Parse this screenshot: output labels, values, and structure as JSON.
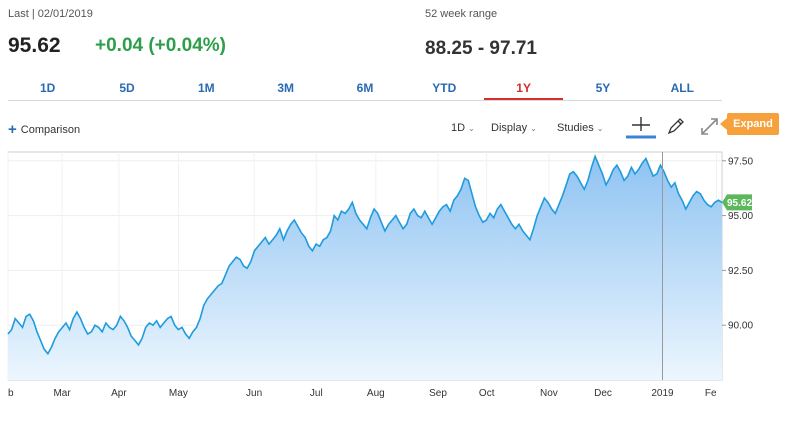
{
  "header": {
    "last_label": "Last | 02/01/2019",
    "last_price": "95.62",
    "change": "+0.04 (+0.04%)",
    "range_label": "52 week range",
    "range_value": "88.25 - 97.71"
  },
  "tabs": [
    {
      "label": "1D",
      "active": false
    },
    {
      "label": "5D",
      "active": false
    },
    {
      "label": "1M",
      "active": false
    },
    {
      "label": "3M",
      "active": false
    },
    {
      "label": "6M",
      "active": false
    },
    {
      "label": "YTD",
      "active": false
    },
    {
      "label": "1Y",
      "active": true
    },
    {
      "label": "5Y",
      "active": false
    },
    {
      "label": "ALL",
      "active": false
    }
  ],
  "toolbar": {
    "comparison_label": "Comparison",
    "interval_label": "1D",
    "display_label": "Display",
    "studies_label": "Studies",
    "expand_label": "Expand",
    "icons": [
      "crosshair-icon",
      "pencil-icon",
      "expand-arrows-icon"
    ]
  },
  "colors": {
    "line": "#1f9bde",
    "fill_top": "#8fc3f2",
    "fill_bottom": "#ecf6fe",
    "positive": "#2e9e4b",
    "active_tab": "#d62d2d",
    "tab": "#2a6ab3",
    "price_badge": "#5cb85c",
    "expand": "#f6a13b"
  },
  "chart_data": {
    "type": "area",
    "x_tick_labels": [
      "b",
      "Mar",
      "Apr",
      "May",
      "Jun",
      "Jul",
      "Aug",
      "Sep",
      "Oct",
      "Nov",
      "Dec",
      "2019",
      "Fe"
    ],
    "x_tick_positions": [
      0,
      20,
      41,
      63,
      91,
      114,
      136,
      159,
      177,
      200,
      220,
      242,
      262
    ],
    "y_ticks": [
      90,
      92.5,
      95,
      97.5
    ],
    "y_tick_labels": [
      "90.00",
      "92.50",
      "95.00",
      "97.50"
    ],
    "ylim": [
      87.5,
      97.9
    ],
    "x_range": [
      0,
      264
    ],
    "last_value_label": "95.62",
    "series": [
      {
        "values": [
          89.6,
          89.8,
          90.3,
          90.1,
          89.9,
          90.4,
          90.5,
          90.2,
          89.7,
          89.3,
          88.9,
          88.7,
          89.0,
          89.4,
          89.7,
          89.9,
          90.1,
          89.8,
          90.3,
          90.6,
          90.3,
          89.9,
          89.6,
          89.7,
          90.0,
          89.9,
          89.7,
          90.1,
          89.9,
          89.8,
          90.0,
          90.4,
          90.2,
          89.9,
          89.5,
          89.3,
          89.1,
          89.4,
          89.9,
          90.1,
          90.0,
          90.2,
          89.9,
          90.1,
          90.3,
          90.4,
          90.0,
          89.8,
          89.9,
          89.6,
          89.4,
          89.7,
          89.9,
          90.3,
          90.9,
          91.2,
          91.4,
          91.6,
          91.8,
          91.9,
          92.3,
          92.7,
          92.9,
          93.1,
          93.0,
          92.7,
          92.6,
          92.9,
          93.4,
          93.6,
          93.8,
          94.0,
          93.7,
          93.9,
          94.1,
          94.4,
          93.9,
          94.3,
          94.6,
          94.8,
          94.5,
          94.2,
          94.0,
          93.6,
          93.4,
          93.7,
          93.6,
          93.9,
          94.0,
          94.3,
          95.0,
          94.8,
          95.2,
          95.1,
          95.3,
          95.6,
          95.1,
          94.8,
          94.6,
          94.4,
          94.9,
          95.3,
          95.1,
          94.7,
          94.3,
          94.6,
          94.8,
          95.0,
          94.7,
          94.4,
          94.6,
          95.1,
          95.3,
          95.0,
          94.9,
          95.2,
          94.9,
          94.6,
          94.9,
          95.2,
          95.4,
          95.5,
          95.2,
          95.7,
          95.9,
          96.2,
          96.7,
          96.6,
          96.0,
          95.4,
          95.0,
          94.7,
          94.8,
          95.1,
          94.9,
          95.3,
          95.5,
          95.2,
          94.9,
          94.6,
          94.4,
          94.6,
          94.3,
          94.1,
          93.9,
          94.4,
          95.0,
          95.4,
          95.8,
          95.6,
          95.3,
          95.1,
          95.5,
          95.9,
          96.4,
          96.9,
          97.0,
          96.8,
          96.5,
          96.2,
          96.6,
          97.2,
          97.7,
          97.3,
          96.9,
          96.4,
          96.7,
          97.1,
          97.3,
          97.0,
          96.6,
          96.8,
          97.2,
          96.9,
          97.1,
          97.4,
          97.6,
          97.2,
          96.8,
          96.9,
          97.3,
          97.0,
          96.6,
          96.3,
          96.5,
          96.0,
          95.7,
          95.3,
          95.6,
          95.9,
          96.1,
          96.0,
          95.7,
          95.5,
          95.4,
          95.6,
          95.7,
          95.6
        ],
        "x_step": 1.32
      }
    ]
  }
}
